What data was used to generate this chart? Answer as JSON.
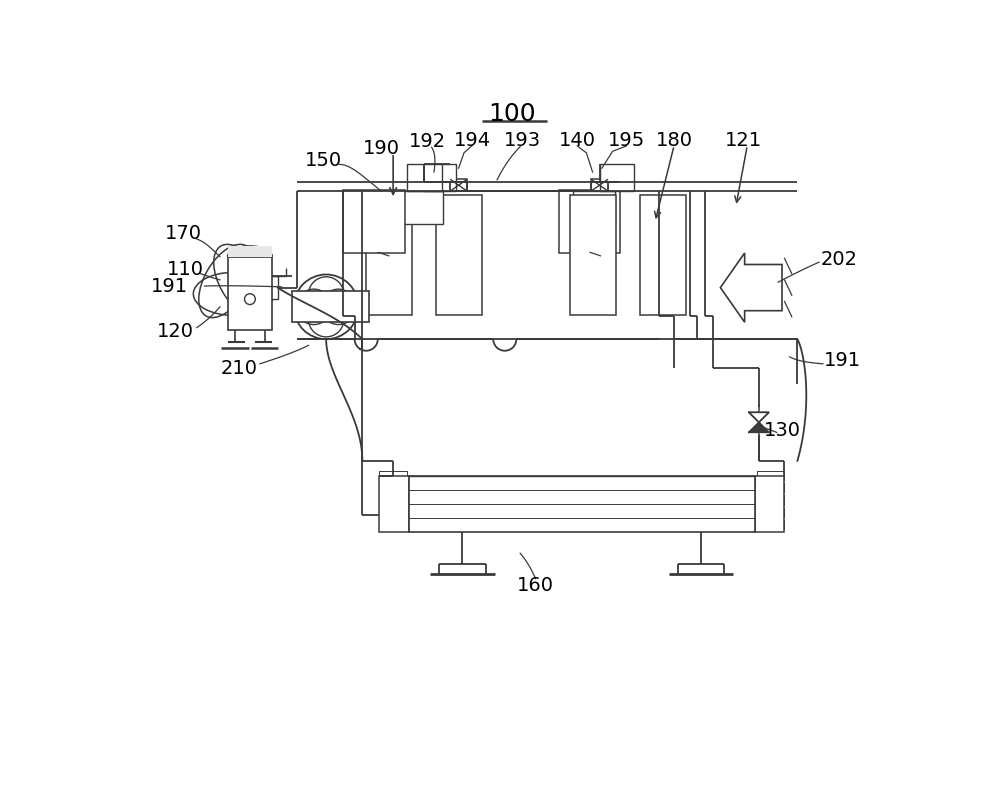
{
  "bg_color": "#ffffff",
  "line_color": "#3a3a3a",
  "title": "100",
  "font_size": 14,
  "lw": 1.3
}
